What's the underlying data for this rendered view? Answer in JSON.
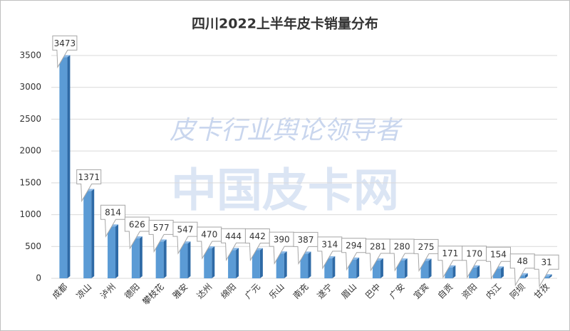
{
  "chart_data": {
    "type": "bar",
    "title": "四川2022上半年皮卡销量分布",
    "annotations": [
      "皮卡行业舆论领导者",
      "中国皮卡网"
    ],
    "categories": [
      "成都",
      "凉山",
      "泸州",
      "德阳",
      "攀枝花",
      "雅安",
      "达州",
      "绵阳",
      "广元",
      "乐山",
      "南充",
      "遂宁",
      "眉山",
      "巴中",
      "广安",
      "宜宾",
      "自贡",
      "资阳",
      "内江",
      "阿坝",
      "甘孜"
    ],
    "values": [
      3473,
      1371,
      814,
      626,
      577,
      547,
      470,
      444,
      442,
      390,
      387,
      314,
      294,
      281,
      280,
      275,
      171,
      170,
      154,
      48,
      31
    ],
    "color": "#5b9bd5",
    "ylim": [
      0,
      3500
    ],
    "yticks": [
      0,
      500,
      1000,
      1500,
      2000,
      2500,
      3000,
      3500
    ],
    "grid": true
  }
}
